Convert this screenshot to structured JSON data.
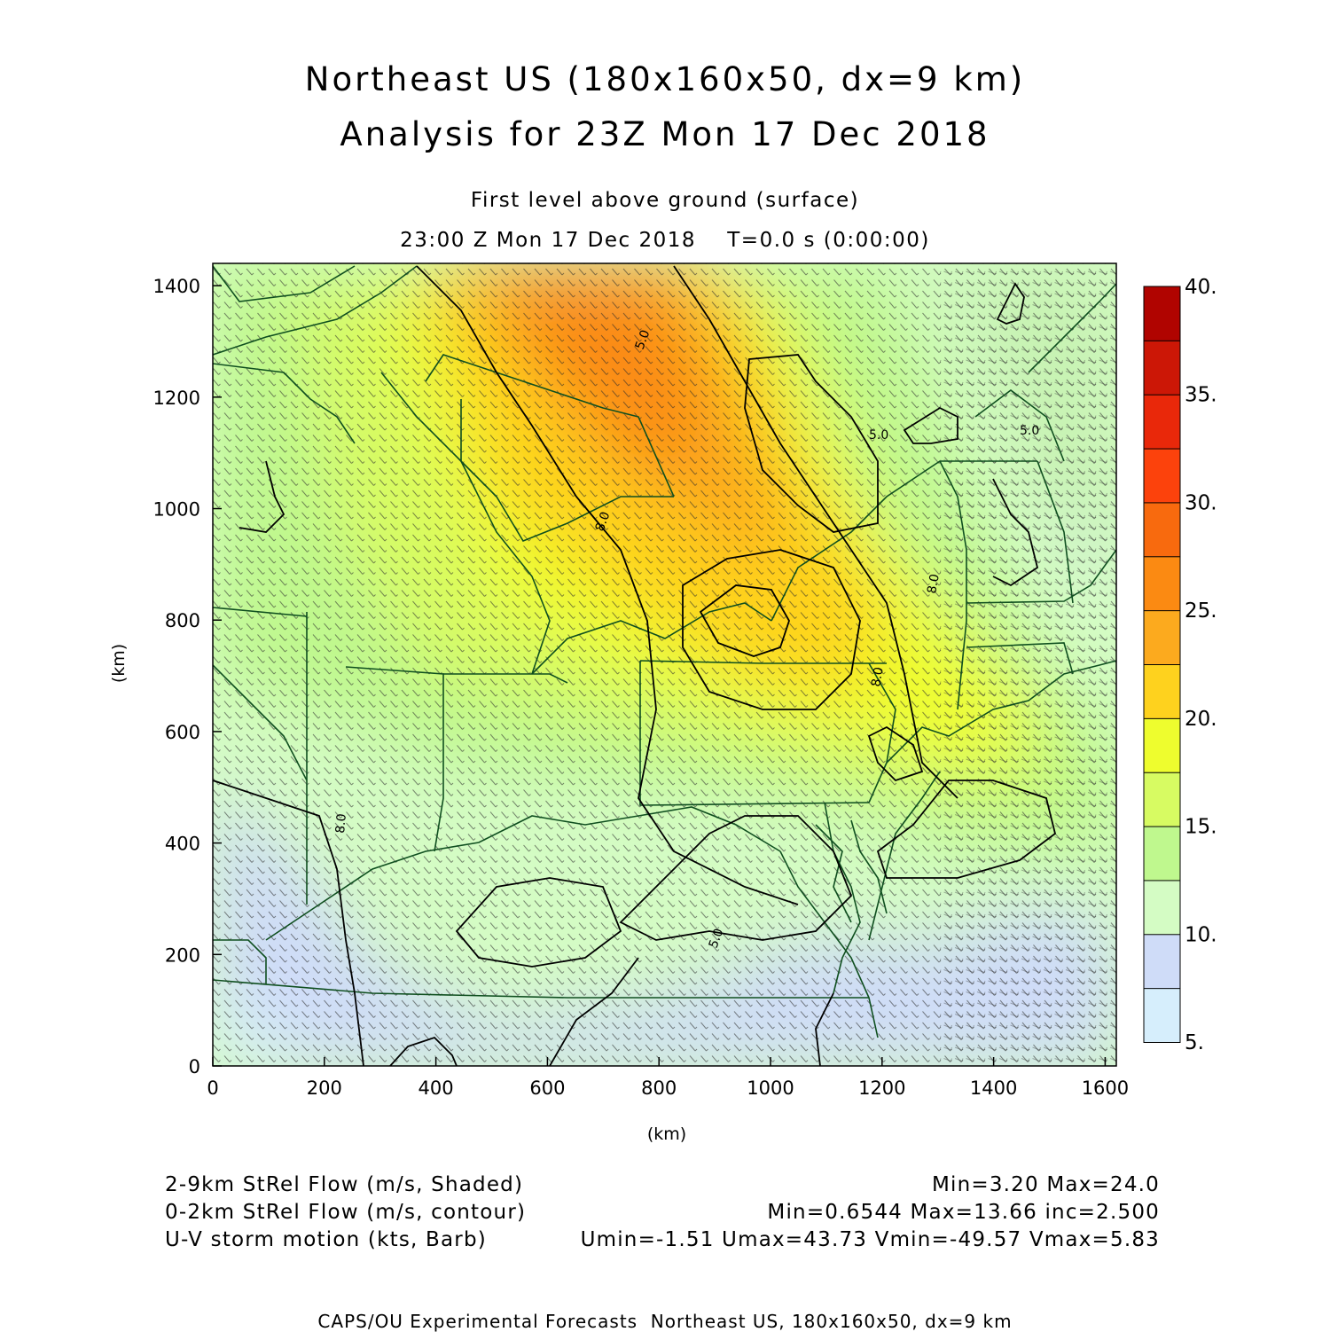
{
  "title": {
    "line1": "Northeast US (180x160x50, dx=9 km)",
    "line2": "Analysis for 23Z Mon 17 Dec 2018"
  },
  "subtitle": {
    "line1": "First level above ground (surface)",
    "line2": "23:00 Z Mon 17 Dec 2018    T=0.0 s (0:00:00)"
  },
  "axes": {
    "x_ticks": [
      "0",
      "200",
      "400",
      "600",
      "800",
      "1000",
      "1200",
      "1400",
      "1600"
    ],
    "y_ticks": [
      "0",
      "200",
      "400",
      "600",
      "800",
      "1000",
      "1200",
      "1400"
    ],
    "x_unit": "(km)",
    "y_unit": "(km)",
    "x_range_km": [
      0,
      1620
    ],
    "y_range_km": [
      0,
      1440
    ]
  },
  "colorbar": {
    "labels": [
      "5.",
      "10.",
      "15.",
      "20.",
      "25.",
      "30.",
      "35.",
      "40."
    ],
    "colors": [
      "#d6eefc",
      "#cfdcf8",
      "#d4fcc4",
      "#bff88e",
      "#d7fb62",
      "#eefd2e",
      "#fed21e",
      "#fcaa1e",
      "#fb8a12",
      "#f86a0e",
      "#fc420c",
      "#e9280a",
      "#cc1706",
      "#b00400"
    ]
  },
  "contour_labels": [
    "5.0",
    "5.0",
    "5.0",
    "8.0",
    "8.0",
    "8.0",
    "8.0",
    "5.0"
  ],
  "footer": {
    "shaded": {
      "label": "2-9km StRel Flow (m/s, Shaded)",
      "stats": "Min=3.20 Max=24.0"
    },
    "contour": {
      "label": "0-2km StRel Flow (m/s, contour)",
      "stats": "Min=0.6544 Max=13.66 inc=2.500"
    },
    "barb": {
      "label": "U-V storm motion (kts, Barb)",
      "stats": "Umin=-1.51 Umax=43.73 Vmin=-49.57 Vmax=5.83"
    }
  },
  "credit": "CAPS/OU Experimental Forecasts  Northeast US, 180x160x50, dx=9 km"
}
